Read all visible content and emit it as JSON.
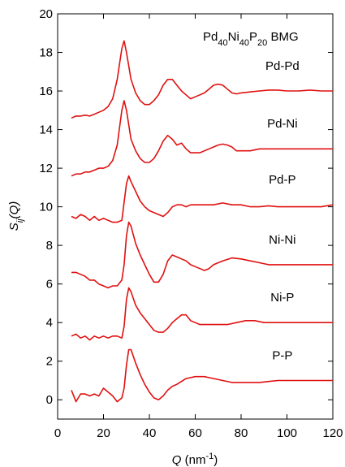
{
  "chart_data": {
    "type": "line",
    "title": "",
    "xlabel": {
      "base": "Q",
      "unit_prefix": " (nm",
      "unit_sup": "-1",
      "unit_suffix": ")"
    },
    "ylabel": {
      "base": "S",
      "sub": "ij",
      "suffix": "(Q)"
    },
    "xlim": [
      0,
      120
    ],
    "ylim": [
      -1,
      20
    ],
    "xticks": [
      0,
      20,
      40,
      60,
      80,
      100,
      120
    ],
    "yticks": [
      0,
      2,
      4,
      6,
      8,
      10,
      12,
      14,
      16,
      18,
      20
    ],
    "grid": false,
    "annotation": {
      "parts": [
        "Pd",
        "40",
        "Ni",
        "40",
        "P",
        "20",
        " BMG"
      ]
    },
    "line_color": "#e01010",
    "series": [
      {
        "name": "Pd-Pd",
        "x": [
          6,
          8,
          10,
          12,
          14,
          16,
          18,
          20,
          22,
          24,
          26,
          28,
          29,
          30,
          32,
          34,
          36,
          38,
          40,
          42,
          44,
          46,
          48,
          50,
          52,
          54,
          56,
          58,
          60,
          62,
          64,
          66,
          68,
          70,
          72,
          74,
          76,
          78,
          80,
          84,
          88,
          92,
          96,
          100,
          105,
          110,
          115,
          120
        ],
        "y": [
          14.6,
          14.7,
          14.7,
          14.75,
          14.7,
          14.8,
          14.9,
          15.0,
          15.2,
          15.6,
          16.6,
          18.2,
          18.6,
          18.0,
          16.6,
          15.9,
          15.5,
          15.3,
          15.3,
          15.5,
          15.8,
          16.3,
          16.6,
          16.6,
          16.3,
          16.0,
          15.8,
          15.6,
          15.7,
          15.8,
          15.9,
          16.1,
          16.3,
          16.35,
          16.3,
          16.1,
          15.9,
          15.85,
          15.9,
          15.95,
          16.0,
          16.05,
          16.05,
          16.0,
          16.0,
          16.05,
          16.0,
          16.0
        ]
      },
      {
        "name": "Pd-Ni",
        "x": [
          6,
          8,
          10,
          12,
          14,
          16,
          18,
          20,
          22,
          24,
          26,
          28,
          29,
          30,
          32,
          34,
          36,
          38,
          40,
          42,
          44,
          46,
          48,
          50,
          52,
          54,
          56,
          58,
          60,
          62,
          64,
          66,
          68,
          70,
          72,
          74,
          76,
          78,
          80,
          84,
          88,
          92,
          96,
          100,
          105,
          110,
          115,
          120
        ],
        "y": [
          11.6,
          11.7,
          11.7,
          11.8,
          11.8,
          11.9,
          12.0,
          12.0,
          12.1,
          12.4,
          13.2,
          15.0,
          15.5,
          15.0,
          13.5,
          12.9,
          12.5,
          12.3,
          12.3,
          12.5,
          12.9,
          13.4,
          13.7,
          13.5,
          13.2,
          13.3,
          13.0,
          12.8,
          12.8,
          12.8,
          12.9,
          13.0,
          13.1,
          13.2,
          13.25,
          13.2,
          13.1,
          12.9,
          12.9,
          12.9,
          13.0,
          13.0,
          13.0,
          13.0,
          13.0,
          13.0,
          13.0,
          13.0
        ]
      },
      {
        "name": "Pd-P",
        "x": [
          6,
          8,
          10,
          12,
          14,
          16,
          18,
          20,
          22,
          24,
          26,
          28,
          30,
          31,
          32,
          34,
          36,
          38,
          40,
          42,
          44,
          46,
          48,
          50,
          52,
          54,
          56,
          58,
          60,
          64,
          68,
          72,
          76,
          80,
          84,
          88,
          92,
          96,
          100,
          105,
          110,
          115,
          120
        ],
        "y": [
          9.5,
          9.4,
          9.6,
          9.5,
          9.3,
          9.5,
          9.3,
          9.4,
          9.3,
          9.2,
          9.2,
          9.3,
          11.2,
          11.6,
          11.3,
          10.8,
          10.3,
          10.0,
          9.8,
          9.7,
          9.6,
          9.5,
          9.7,
          10.0,
          10.1,
          10.1,
          10.0,
          10.1,
          10.1,
          10.1,
          10.1,
          10.2,
          10.1,
          10.1,
          10.0,
          10.0,
          10.05,
          10.0,
          10.0,
          10.0,
          10.0,
          10.0,
          10.1
        ]
      },
      {
        "name": "Ni-Ni",
        "x": [
          6,
          8,
          10,
          12,
          14,
          16,
          18,
          20,
          22,
          24,
          26,
          28,
          29,
          30,
          31,
          32,
          34,
          36,
          38,
          40,
          42,
          44,
          46,
          48,
          50,
          52,
          54,
          56,
          58,
          60,
          62,
          64,
          66,
          68,
          70,
          72,
          76,
          80,
          84,
          88,
          92,
          96,
          100,
          105,
          110,
          115,
          120
        ],
        "y": [
          6.6,
          6.6,
          6.5,
          6.4,
          6.2,
          6.2,
          6.0,
          5.9,
          5.8,
          5.9,
          5.9,
          6.2,
          7.0,
          8.5,
          9.2,
          9.0,
          8.1,
          7.5,
          7.0,
          6.5,
          6.1,
          6.1,
          6.5,
          7.2,
          7.5,
          7.4,
          7.3,
          7.2,
          7.0,
          6.9,
          6.8,
          6.7,
          6.8,
          7.0,
          7.1,
          7.2,
          7.35,
          7.3,
          7.2,
          7.1,
          7.0,
          7.0,
          7.0,
          7.0,
          7.0,
          7.0,
          7.0
        ]
      },
      {
        "name": "Ni-P",
        "x": [
          6,
          8,
          10,
          12,
          14,
          16,
          18,
          20,
          22,
          24,
          26,
          28,
          29,
          30,
          31,
          32,
          34,
          36,
          38,
          40,
          42,
          44,
          46,
          48,
          50,
          52,
          54,
          56,
          58,
          60,
          62,
          64,
          66,
          70,
          74,
          78,
          82,
          86,
          90,
          96,
          100,
          105,
          110,
          115,
          120
        ],
        "y": [
          3.3,
          3.4,
          3.2,
          3.3,
          3.1,
          3.3,
          3.2,
          3.3,
          3.2,
          3.3,
          3.3,
          3.2,
          3.8,
          5.2,
          5.8,
          5.6,
          4.9,
          4.5,
          4.2,
          3.9,
          3.6,
          3.5,
          3.5,
          3.7,
          4.0,
          4.2,
          4.4,
          4.4,
          4.1,
          4.0,
          3.9,
          3.9,
          3.9,
          3.9,
          3.9,
          4.0,
          4.1,
          4.1,
          4.0,
          4.0,
          4.0,
          4.0,
          4.0,
          4.0,
          4.0
        ]
      },
      {
        "name": "P-P",
        "x": [
          6,
          8,
          10,
          12,
          14,
          16,
          18,
          20,
          22,
          24,
          26,
          28,
          29,
          30,
          31,
          32,
          34,
          36,
          38,
          40,
          42,
          44,
          46,
          48,
          50,
          52,
          56,
          60,
          64,
          68,
          72,
          76,
          80,
          84,
          88,
          92,
          96,
          100,
          105,
          110,
          115,
          120
        ],
        "y": [
          0.5,
          -0.1,
          0.3,
          0.3,
          0.2,
          0.3,
          0.2,
          0.6,
          0.4,
          0.2,
          -0.1,
          0.1,
          0.6,
          1.8,
          2.6,
          2.6,
          1.9,
          1.3,
          0.8,
          0.4,
          0.1,
          0.0,
          0.2,
          0.5,
          0.7,
          0.8,
          1.1,
          1.2,
          1.2,
          1.1,
          1.0,
          0.9,
          0.9,
          0.9,
          0.9,
          0.95,
          1.0,
          1.0,
          1.0,
          1.0,
          1.0,
          1.0
        ]
      }
    ]
  }
}
